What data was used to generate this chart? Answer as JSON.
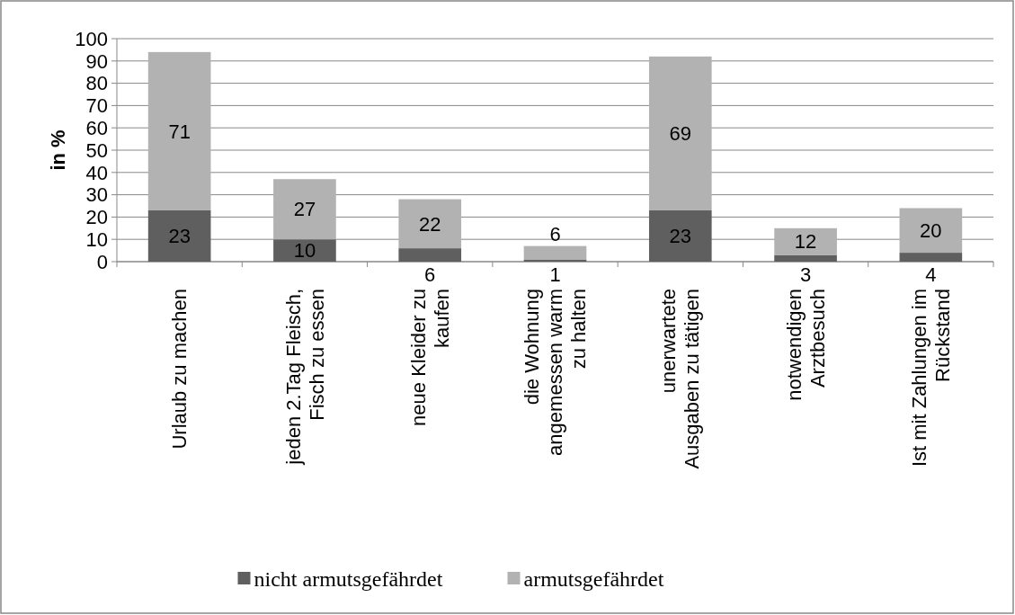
{
  "chart_data": {
    "type": "bar",
    "stacked": true,
    "ylabel": "in %",
    "categories": [
      "Urlaub zu machen",
      "jeden 2.Tag Fleisch,\nFisch zu essen",
      "neue Kleider zu\nkaufen",
      "die Wohnung\nangemessen warm\nzu halten",
      "unerwartete\nAusgaben zu tätigen",
      "notwendigen\nArztbesuch",
      "Ist mit Zahlungen im\nRückstand"
    ],
    "series": [
      {
        "name": "nicht armutsgefährdet",
        "color": "#5f5f5f",
        "values": [
          23,
          10,
          6,
          1,
          23,
          3,
          4
        ]
      },
      {
        "name": "armutsgefährdet",
        "color": "#b2b2b2",
        "values": [
          71,
          27,
          22,
          6,
          69,
          12,
          20
        ]
      }
    ],
    "ylim": [
      0,
      100
    ],
    "yticks": [
      0,
      10,
      20,
      30,
      40,
      50,
      60,
      70,
      80,
      90,
      100
    ],
    "grid": "y",
    "legend": "bottom",
    "data_labels": true
  }
}
